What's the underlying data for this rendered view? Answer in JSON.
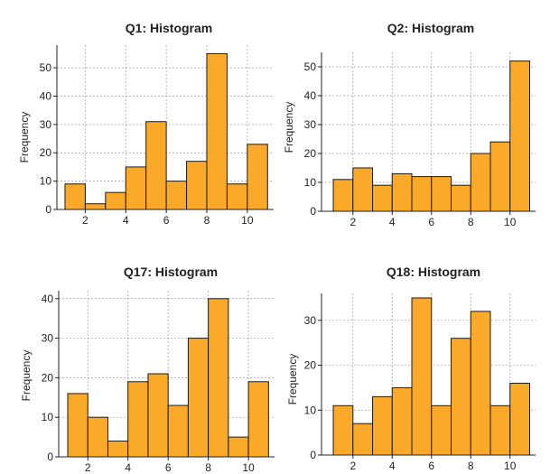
{
  "colors": {
    "bar": "#FBA928",
    "edge": "#1a1a1a",
    "grid": "#9a9a9a",
    "axis": "#222222"
  },
  "chart_data": [
    {
      "type": "bar",
      "title": "Q1: Histogram",
      "xlabel": "",
      "ylabel": "Frequency",
      "bin_edges": [
        1,
        2,
        3,
        4,
        5,
        6,
        7,
        8,
        9,
        10,
        11
      ],
      "values": [
        9,
        2,
        6,
        15,
        31,
        10,
        17,
        55,
        9,
        23
      ],
      "xticks": [
        2,
        4,
        6,
        8,
        10
      ],
      "yticks": [
        0,
        10,
        20,
        30,
        40,
        50
      ],
      "xlim": [
        0.6,
        11.3
      ],
      "ylim": [
        0,
        58
      ],
      "grid": true
    },
    {
      "type": "bar",
      "title": "Q2: Histogram",
      "xlabel": "",
      "ylabel": "Frequency",
      "bin_edges": [
        1,
        2,
        3,
        4,
        5,
        6,
        7,
        8,
        9,
        10,
        11
      ],
      "values": [
        11,
        15,
        9,
        13,
        12,
        12,
        9,
        20,
        24,
        52
      ],
      "xticks": [
        2,
        4,
        6,
        8,
        10
      ],
      "yticks": [
        0,
        10,
        20,
        30,
        40,
        50
      ],
      "xlim": [
        0.4,
        11.3
      ],
      "ylim": [
        0,
        55
      ],
      "grid": true
    },
    {
      "type": "bar",
      "title": "Q17: Histogram",
      "xlabel": "",
      "ylabel": "Frequency",
      "bin_edges": [
        1,
        2,
        3,
        4,
        5,
        6,
        7,
        8,
        9,
        10,
        11
      ],
      "values": [
        16,
        10,
        4,
        19,
        21,
        13,
        30,
        40,
        5,
        19
      ],
      "xticks": [
        2,
        4,
        6,
        8,
        10
      ],
      "yticks": [
        0,
        10,
        20,
        30,
        40
      ],
      "xlim": [
        0.55,
        11.3
      ],
      "ylim": [
        0,
        42
      ],
      "grid": true
    },
    {
      "type": "bar",
      "title": "Q18: Histogram",
      "xlabel": "",
      "ylabel": "Frequency",
      "bin_edges": [
        1,
        2,
        3,
        4,
        5,
        6,
        7,
        8,
        9,
        10,
        11
      ],
      "values": [
        11,
        7,
        13,
        15,
        35,
        11,
        26,
        32,
        11,
        16
      ],
      "xticks": [
        2,
        4,
        6,
        8,
        10
      ],
      "yticks": [
        0,
        10,
        20,
        30
      ],
      "xlim": [
        0.4,
        11.3
      ],
      "ylim": [
        0,
        36
      ],
      "grid": true
    }
  ]
}
